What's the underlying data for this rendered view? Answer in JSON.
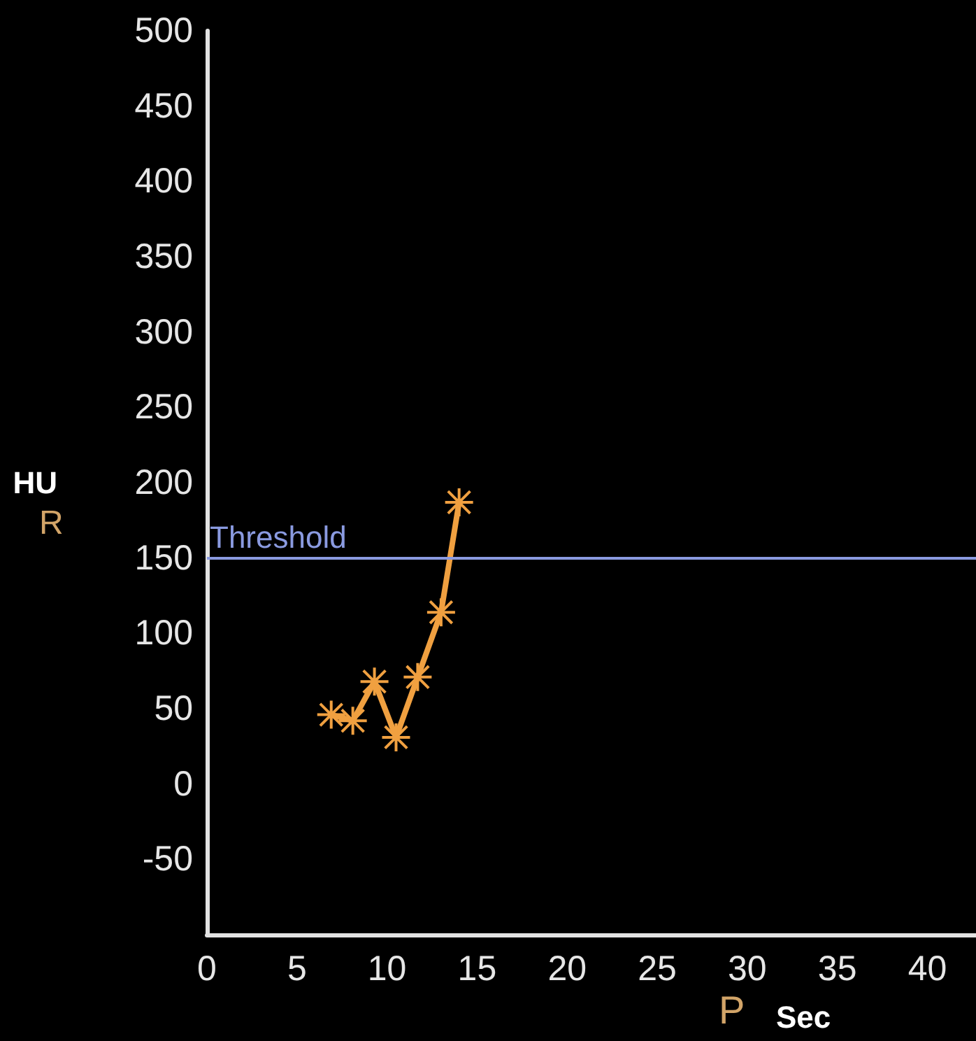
{
  "chart_data": {
    "type": "line",
    "xlabel": "Sec",
    "ylabel": "HU",
    "annotations": [
      "R",
      "P"
    ],
    "x": [
      6.9,
      8.1,
      9.3,
      10.5,
      11.7,
      13,
      14
    ],
    "series": [
      {
        "color": "#f0a040",
        "values": [
          46,
          42,
          68,
          31,
          71,
          114,
          187
        ]
      }
    ],
    "xlim": [
      0,
      42.7
    ],
    "xticks": [
      0,
      5,
      10,
      15,
      20,
      25,
      30,
      35,
      40
    ],
    "ylim": [
      -100,
      500
    ],
    "yticks": [
      -50,
      0,
      50,
      100,
      150,
      200,
      250,
      300,
      350,
      400,
      450,
      500
    ],
    "ref_lines": [
      {
        "axis": "y",
        "value": 150,
        "label": "Threshold",
        "color": "#8a9ae0"
      }
    ],
    "grid": false,
    "marker": "star",
    "line_style": "solid"
  }
}
